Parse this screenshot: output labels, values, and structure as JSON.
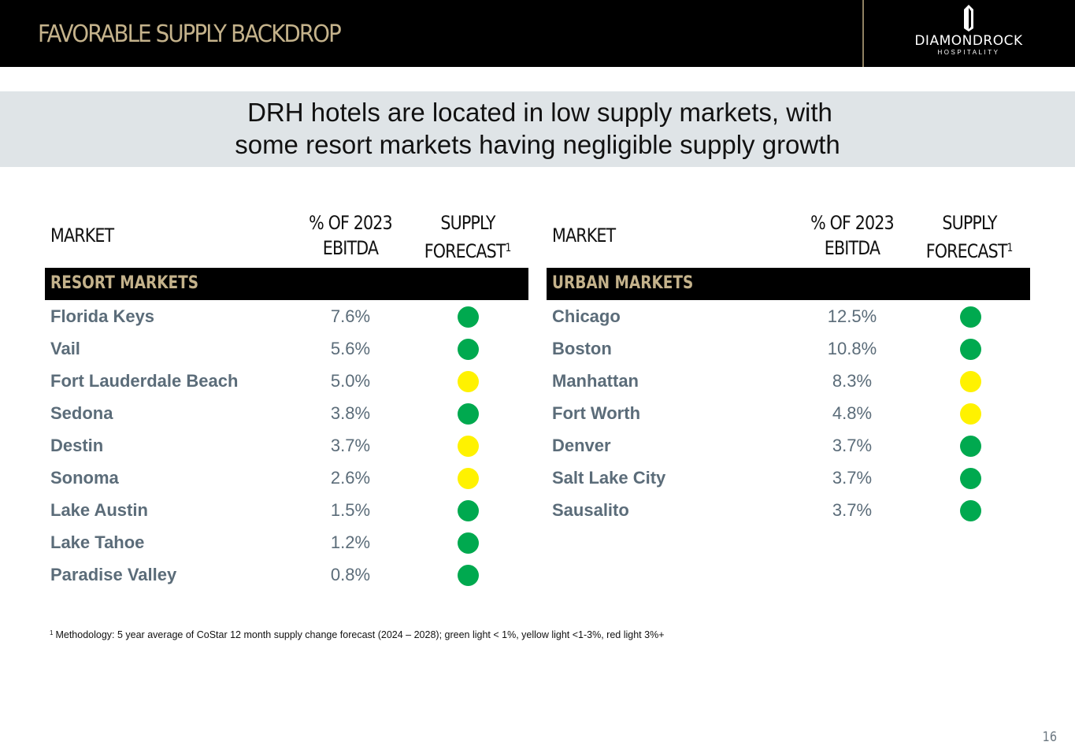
{
  "header": {
    "title": "FAVORABLE SUPPLY BACKDROP",
    "logo_name": "DIAMONDROCK",
    "logo_sub": "HOSPITALITY"
  },
  "banner": {
    "line1": "DRH hotels are located in low supply markets, with",
    "line2": "some resort markets having negligible supply growth"
  },
  "columns": {
    "market": "MARKET",
    "ebitda_line1": "% OF 2023",
    "ebitda_line2": "EBITDA",
    "supply_line1": "SUPPLY",
    "supply_line2": "FORECAST",
    "supply_sup": "1"
  },
  "colors": {
    "green": "#00a94f",
    "yellow": "#fff200",
    "gold": "#c4b28b",
    "slate": "#5b6c79"
  },
  "resort": {
    "section_label": "RESORT MARKETS",
    "rows": [
      {
        "market": "Florida Keys",
        "pct": "7.6%",
        "light": "green"
      },
      {
        "market": "Vail",
        "pct": "5.6%",
        "light": "green"
      },
      {
        "market": "Fort Lauderdale Beach",
        "pct": "5.0%",
        "light": "yellow"
      },
      {
        "market": "Sedona",
        "pct": "3.8%",
        "light": "green"
      },
      {
        "market": "Destin",
        "pct": "3.7%",
        "light": "yellow"
      },
      {
        "market": "Sonoma",
        "pct": "2.6%",
        "light": "yellow"
      },
      {
        "market": "Lake Austin",
        "pct": "1.5%",
        "light": "green"
      },
      {
        "market": "Lake Tahoe",
        "pct": "1.2%",
        "light": "green"
      },
      {
        "market": "Paradise Valley",
        "pct": "0.8%",
        "light": "green"
      }
    ]
  },
  "urban": {
    "section_label": "URBAN MARKETS",
    "rows": [
      {
        "market": "Chicago",
        "pct": "12.5%",
        "light": "green"
      },
      {
        "market": "Boston",
        "pct": "10.8%",
        "light": "green"
      },
      {
        "market": "Manhattan",
        "pct": "8.3%",
        "light": "yellow"
      },
      {
        "market": "Fort Worth",
        "pct": "4.8%",
        "light": "yellow"
      },
      {
        "market": "Denver",
        "pct": "3.7%",
        "light": "green"
      },
      {
        "market": "Salt Lake City",
        "pct": "3.7%",
        "light": "green"
      },
      {
        "market": "Sausalito",
        "pct": "3.7%",
        "light": "green"
      }
    ]
  },
  "footnote": {
    "sup": "1",
    "text": "Methodology: 5 year average of CoStar 12 month supply change forecast (2024 – 2028); green light < 1%, yellow light <1-3%, red light 3%+"
  },
  "page_number": "16"
}
